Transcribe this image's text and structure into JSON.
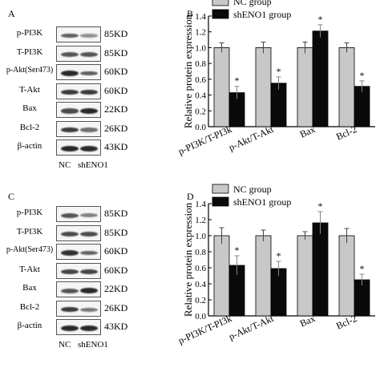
{
  "panels": {
    "a": {
      "letter": "A"
    },
    "b": {
      "letter": "B"
    },
    "c": {
      "letter": "C"
    },
    "d": {
      "letter": "D"
    }
  },
  "blots": [
    {
      "rows": [
        {
          "label": "p-PI3K",
          "kd": "85KD",
          "nc": 0.55,
          "sh": 0.25
        },
        {
          "label": "T-PI3K",
          "kd": "85KD",
          "nc": 0.6,
          "sh": 0.6
        },
        {
          "label": "p-Akt(Ser473)",
          "kd": "60KD",
          "nc": 0.85,
          "sh": 0.55
        },
        {
          "label": "T-Akt",
          "kd": "60KD",
          "nc": 0.75,
          "sh": 0.75
        },
        {
          "label": "Bax",
          "kd": "22KD",
          "nc": 0.65,
          "sh": 0.85
        },
        {
          "label": "Bcl-2",
          "kd": "26KD",
          "nc": 0.75,
          "sh": 0.45
        },
        {
          "label": "β-actin",
          "kd": "43KD",
          "nc": 0.85,
          "sh": 0.85
        }
      ],
      "lanes": [
        "NC",
        "shENO1"
      ]
    },
    {
      "rows": [
        {
          "label": "p-PI3K",
          "kd": "85KD",
          "nc": 0.6,
          "sh": 0.35
        },
        {
          "label": "T-PI3K",
          "kd": "85KD",
          "nc": 0.65,
          "sh": 0.65
        },
        {
          "label": "p-Akt(Ser473)",
          "kd": "60KD",
          "nc": 0.8,
          "sh": 0.5
        },
        {
          "label": "T-Akt",
          "kd": "60KD",
          "nc": 0.7,
          "sh": 0.7
        },
        {
          "label": "Bax",
          "kd": "22KD",
          "nc": 0.6,
          "sh": 0.85
        },
        {
          "label": "Bcl-2",
          "kd": "26KD",
          "nc": 0.75,
          "sh": 0.4
        },
        {
          "label": "β-actin",
          "kd": "43KD",
          "nc": 0.85,
          "sh": 0.85
        }
      ],
      "lanes": [
        "NC",
        "shENO1"
      ]
    }
  ],
  "chart_data": [
    {
      "type": "bar",
      "categories": [
        "p-PI3K/T-PI3k",
        "p-Akt/T-Akt",
        "Bax",
        "Bcl-2"
      ],
      "series": [
        {
          "name": "NC group",
          "values": [
            1.0,
            1.0,
            1.0,
            1.0
          ],
          "errors": [
            0.06,
            0.07,
            0.07,
            0.06
          ],
          "color": "#c8c8c8"
        },
        {
          "name": "shENO1 group",
          "values": [
            0.43,
            0.55,
            1.21,
            0.51
          ],
          "errors": [
            0.08,
            0.08,
            0.08,
            0.07
          ],
          "color": "#0a0a0a"
        }
      ],
      "significance": [
        {
          "category": "p-PI3K/T-PI3k",
          "series": "shENO1 group",
          "mark": "*"
        },
        {
          "category": "p-Akt/T-Akt",
          "series": "shENO1 group",
          "mark": "*"
        },
        {
          "category": "Bax",
          "series": "shENO1 group",
          "mark": "*"
        },
        {
          "category": "Bcl-2",
          "series": "shENO1 group",
          "mark": "*"
        }
      ],
      "ylabel": "Relative protein expression",
      "ylim": [
        0.0,
        1.4
      ],
      "yticks": [
        "0.0",
        "0.2",
        "0.4",
        "0.6",
        "0.8",
        "1.0",
        "1.2",
        "1.4"
      ],
      "legend": "top-left"
    },
    {
      "type": "bar",
      "categories": [
        "p-PI3K/T-PI3k",
        "p-Akt/T-Akt",
        "Bax",
        "Bcl-2"
      ],
      "series": [
        {
          "name": "NC group",
          "values": [
            1.0,
            1.0,
            1.0,
            1.0
          ],
          "errors": [
            0.1,
            0.07,
            0.05,
            0.09
          ],
          "color": "#c8c8c8"
        },
        {
          "name": "shENO1 group",
          "values": [
            0.63,
            0.59,
            1.16,
            0.45
          ],
          "errors": [
            0.12,
            0.09,
            0.14,
            0.07
          ],
          "color": "#0a0a0a"
        }
      ],
      "significance": [
        {
          "category": "p-PI3K/T-PI3k",
          "series": "shENO1 group",
          "mark": "*"
        },
        {
          "category": "p-Akt/T-Akt",
          "series": "shENO1 group",
          "mark": "*"
        },
        {
          "category": "Bax",
          "series": "shENO1 group",
          "mark": "*"
        },
        {
          "category": "Bcl-2",
          "series": "shENO1 group",
          "mark": "*"
        }
      ],
      "ylabel": "Relative protein expression",
      "ylim": [
        0.0,
        1.4
      ],
      "yticks": [
        "0.0",
        "0.2",
        "0.4",
        "0.6",
        "0.8",
        "1.0",
        "1.2",
        "1.4"
      ],
      "legend": "top-left"
    }
  ]
}
